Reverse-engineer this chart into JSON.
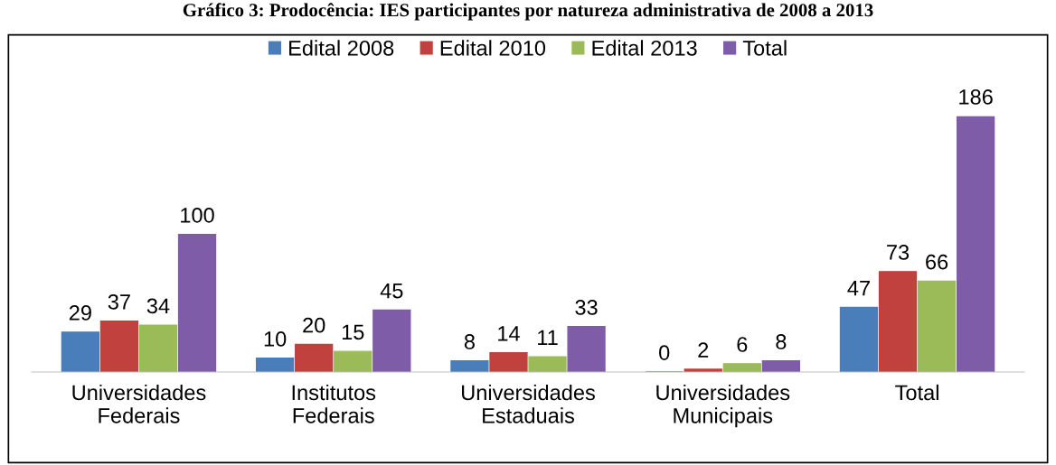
{
  "chart_data": {
    "type": "bar",
    "title": "Gráfico 3: Prodocência: IES participantes por natureza administrativa de 2008 a 2013",
    "categories": [
      "Universidades\nFederais",
      "Institutos\nFederais",
      "Universidades\nEstaduais",
      "Universidades\nMunicipais",
      "Total"
    ],
    "series": [
      {
        "name": "Edital 2008",
        "color": "#4a7ebb",
        "values": [
          29,
          10,
          8,
          0,
          47
        ]
      },
      {
        "name": "Edital 2010",
        "color": "#c0413d",
        "values": [
          37,
          20,
          14,
          2,
          73
        ]
      },
      {
        "name": "Edital 2013",
        "color": "#9bbb59",
        "values": [
          34,
          15,
          11,
          6,
          66
        ]
      },
      {
        "name": "Total",
        "color": "#7e5ca8",
        "values": [
          100,
          45,
          33,
          8,
          186
        ]
      }
    ],
    "data_labels": true,
    "legend": "top",
    "grid": false
  }
}
